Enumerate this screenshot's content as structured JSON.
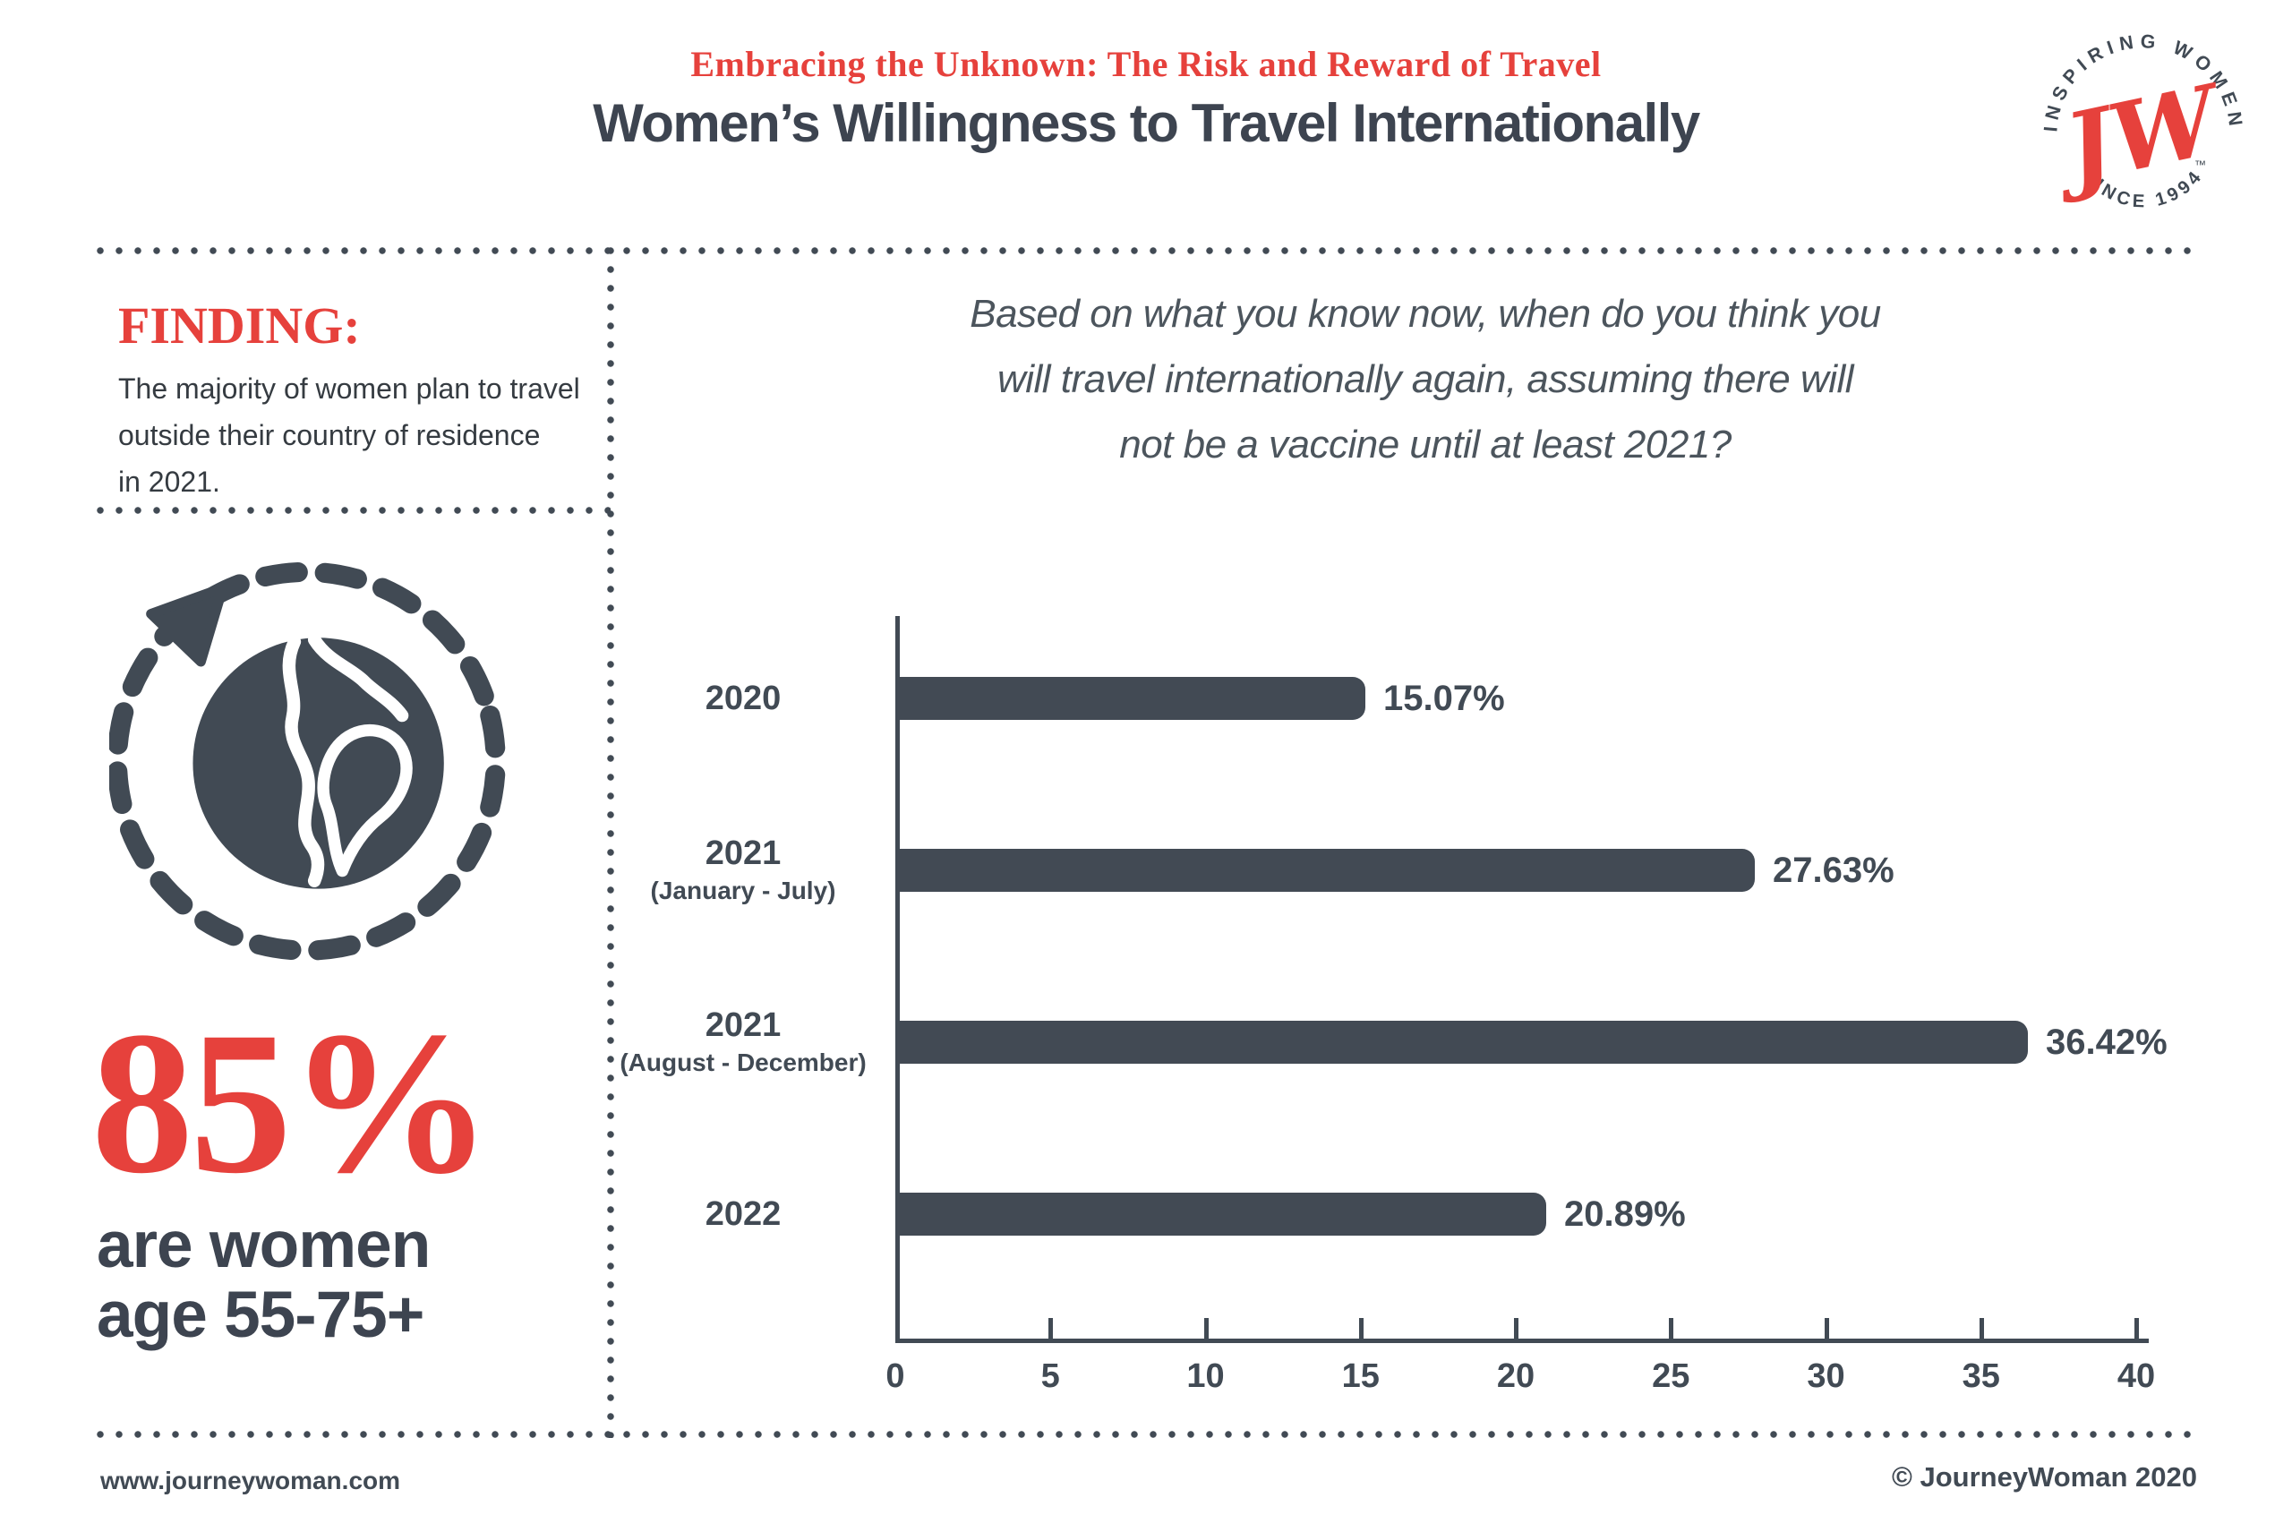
{
  "header": {
    "subtitle": "Embracing the Unknown: The Risk and Reward of Travel",
    "title": "Women’s Willingness to Travel Internationally"
  },
  "logo": {
    "top_text": "INSPIRING WOMEN",
    "bottom_text": "SINCE 1994",
    "monogram": "JW",
    "tm": "™"
  },
  "finding": {
    "heading": "FINDING:",
    "lines": [
      "The majority of women plan to travel",
      "outside their country of residence",
      "in 2021."
    ]
  },
  "icons": {
    "globe": "globe-orbit-arrow-icon"
  },
  "stat": {
    "value": "85%",
    "desc_line1": "are women",
    "desc_line2": "age 55-75+"
  },
  "chart_data": {
    "type": "bar",
    "orientation": "horizontal",
    "title": "Based on what you know now, when do you think you will travel internationally again, assuming there will not be a vaccine until at least 2021?",
    "title_lines": [
      "Based on what you know now, when do you think you",
      "will travel internationally again, assuming there will",
      "not be a vaccine until at least 2021?"
    ],
    "categories": [
      "2020",
      "2021 (January - July)",
      "2021 (August - December)",
      "2022"
    ],
    "category_years": [
      "2020",
      "2021",
      "2021",
      "2022"
    ],
    "category_periods": [
      "",
      "(January - July)",
      "(August - December)",
      ""
    ],
    "values": [
      15.07,
      27.63,
      36.42,
      20.89
    ],
    "value_labels": [
      "15.07%",
      "27.63%",
      "36.42%",
      "20.89%"
    ],
    "xlabel": "",
    "ylabel": "",
    "xlim": [
      0,
      40
    ],
    "xticks": [
      0,
      5,
      10,
      15,
      20,
      25,
      30,
      35,
      40
    ],
    "grid": false,
    "legend_position": "none",
    "bar_color": "#424a54"
  },
  "footer": {
    "website": "www.journeywoman.com",
    "copyright": "© JourneyWoman 2020"
  },
  "colors": {
    "accent_red": "#e6413c",
    "dark_slate": "#414a54",
    "bar": "#424a54",
    "background": "#ffffff"
  }
}
